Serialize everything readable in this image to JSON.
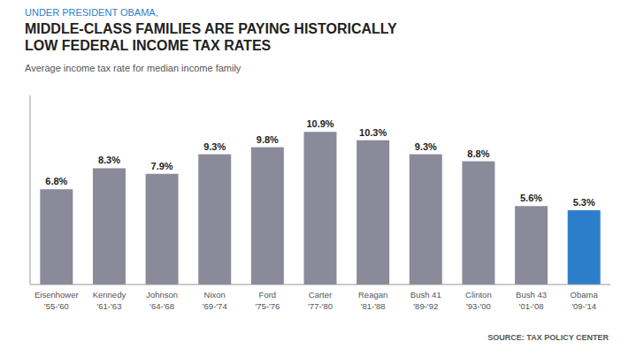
{
  "chart_data": {
    "type": "bar",
    "title": "MIDDLE-CLASS FAMILIES ARE PAYING HISTORICALLY\nLOW FEDERAL INCOME TAX RATES",
    "subtitle": "Average income tax rate for median income family",
    "annotations": [
      "UNDER PRESIDENT OBAMA,",
      "SOURCE: TAX POLICY CENTER"
    ],
    "categories": [
      "Eisenhower\n'55-'60",
      "Kennedy\n'61-'63",
      "Johnson\n'64-'68",
      "Nixon\n'69-'74",
      "Ford\n'75-'76",
      "Carter\n'77-'80",
      "Reagan\n'81-'88",
      "Bush 41\n'89-'92",
      "Clinton\n'93-'00",
      "Bush 43\n'01-'08",
      "Obama\n'09-'14"
    ],
    "values": [
      6.8,
      8.3,
      7.9,
      9.3,
      9.8,
      10.9,
      10.3,
      9.3,
      8.8,
      5.6,
      5.3
    ],
    "value_labels": [
      "6.8%",
      "8.3%",
      "7.9%",
      "9.3%",
      "9.8%",
      "10.9%",
      "10.3%",
      "9.3%",
      "8.8%",
      "5.6%",
      "5.3%"
    ],
    "data_labels": true,
    "colors": [
      "#8a8a9a",
      "#8a8a9a",
      "#8a8a9a",
      "#8a8a9a",
      "#8a8a9a",
      "#8a8a9a",
      "#8a8a9a",
      "#8a8a9a",
      "#8a8a9a",
      "#8a8a9a",
      "#2c7ecb"
    ],
    "ylim": [
      0,
      13.5
    ],
    "yticks": [],
    "tick_labels": "x",
    "grid": false
  }
}
